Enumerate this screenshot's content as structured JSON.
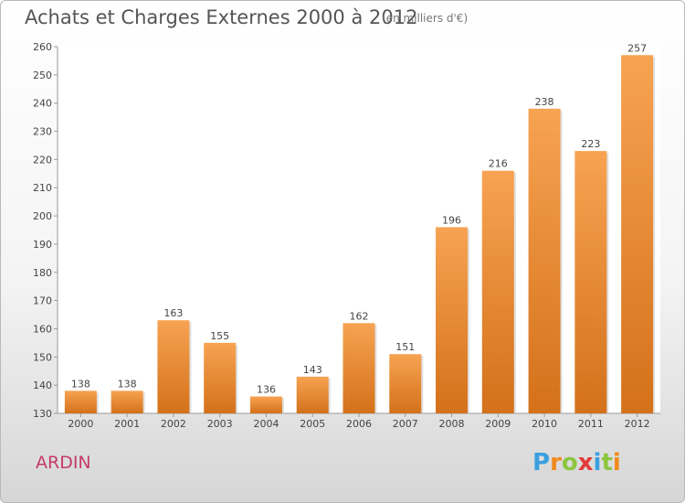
{
  "chart_data": {
    "type": "bar",
    "title": "Achats et Charges Externes 2000 à 2012",
    "subtitle": "(en milliers d'€)",
    "categories": [
      "2000",
      "2001",
      "2002",
      "2003",
      "2004",
      "2005",
      "2006",
      "2007",
      "2008",
      "2009",
      "2010",
      "2011",
      "2012"
    ],
    "values": [
      138,
      138,
      163,
      155,
      136,
      143,
      162,
      151,
      196,
      216,
      238,
      223,
      257
    ],
    "ylim": [
      130,
      260
    ],
    "yticks": [
      130,
      140,
      150,
      160,
      170,
      180,
      190,
      200,
      210,
      220,
      230,
      240,
      250,
      260
    ],
    "grid": false,
    "legend": "none",
    "bar_color_top": "#f7a352",
    "bar_color_bottom": "#d4711a"
  },
  "footer": {
    "commune": "ARDIN",
    "logo_letters": [
      "P",
      "r",
      "o",
      "x",
      "i",
      "t",
      "i"
    ],
    "logo_colors": [
      "#3aa0e0",
      "#f08a1c",
      "#8cc63f",
      "#e33b3b",
      "#3aa0e0",
      "#8cc63f",
      "#f08a1c"
    ]
  }
}
